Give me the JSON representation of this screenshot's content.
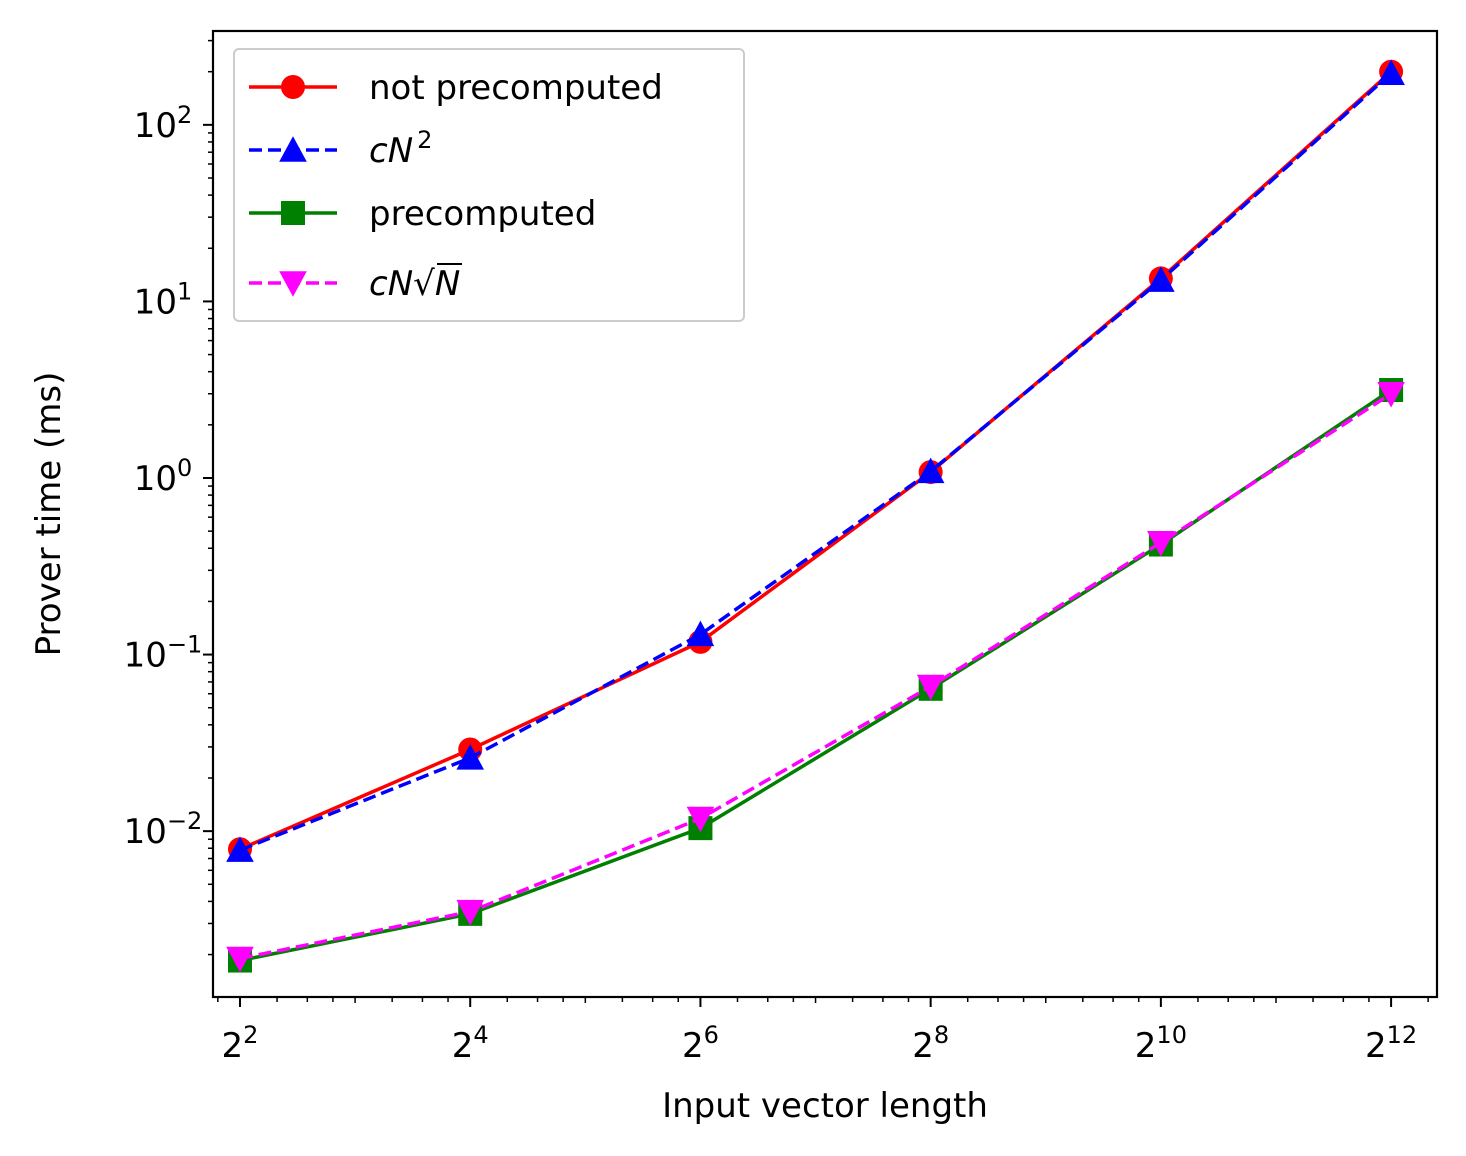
{
  "chart_data": {
    "type": "line",
    "xscale": "log2",
    "yscale": "log10",
    "xlabel": "Input vector length",
    "ylabel": "Prover time (ms)",
    "x": [
      4,
      16,
      64,
      256,
      1024,
      4096
    ],
    "x_tick_labels": [
      {
        "base": "2",
        "exp": "2"
      },
      {
        "base": "2",
        "exp": "4"
      },
      {
        "base": "2",
        "exp": "6"
      },
      {
        "base": "2",
        "exp": "8"
      },
      {
        "base": "2",
        "exp": "10"
      },
      {
        "base": "2",
        "exp": "12"
      }
    ],
    "y_tick_labels": [
      {
        "value": 0.01,
        "base": "10",
        "exp": "−2"
      },
      {
        "value": 0.1,
        "base": "10",
        "exp": "−1"
      },
      {
        "value": 1,
        "base": "10",
        "exp": "0"
      },
      {
        "value": 10,
        "base": "10",
        "exp": "1"
      },
      {
        "value": 100,
        "base": "10",
        "exp": "2"
      }
    ],
    "xlim": [
      3.4,
      5400
    ],
    "ylim": [
      0.00115,
      340
    ],
    "grid": false,
    "legend_position": "top-left",
    "series": [
      {
        "name": "not precomputed",
        "color": "#ff0000",
        "linestyle": "solid",
        "marker": "circle",
        "values": [
          0.0079,
          0.029,
          0.118,
          1.08,
          13.5,
          200
        ]
      },
      {
        "name": "cN²",
        "legend_math": {
          "c": "c",
          "n": "N",
          "sup": "2"
        },
        "color": "#0000ff",
        "linestyle": "dashed",
        "marker": "triangle-up",
        "values": [
          0.0078,
          0.026,
          0.13,
          1.09,
          13.2,
          196
        ]
      },
      {
        "name": "precomputed",
        "color": "#008000",
        "linestyle": "solid",
        "marker": "square",
        "values": [
          0.00185,
          0.0034,
          0.0104,
          0.064,
          0.42,
          3.15
        ]
      },
      {
        "name": "cN√N",
        "legend_math": {
          "c": "c",
          "n": "N",
          "root": "√",
          "rad": "N"
        },
        "color": "#ff00ff",
        "linestyle": "dashed",
        "marker": "triangle-down",
        "values": [
          0.0019,
          0.0035,
          0.0118,
          0.066,
          0.43,
          3.0
        ]
      }
    ]
  }
}
